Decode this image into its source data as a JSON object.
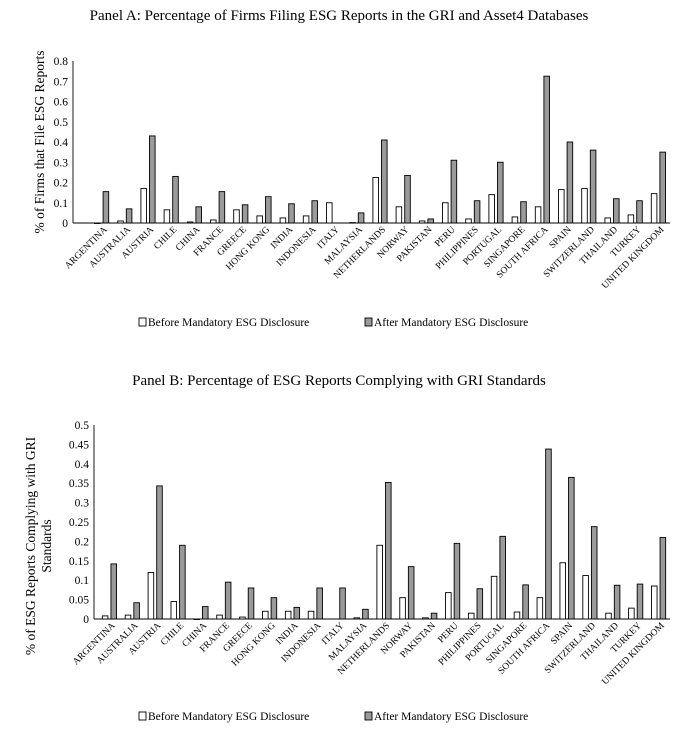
{
  "chart_data": [
    {
      "type": "bar",
      "title": "Panel A: Percentage of Firms Filing ESG Reports in the GRI and Asset4 Databases",
      "ylabel": "% of Firms that File ESG Reports",
      "xlabel": "",
      "ylim": [
        0,
        0.8
      ],
      "yticks": [
        "0",
        "0.1",
        "0.2",
        "0.3",
        "0.4",
        "0.5",
        "0.6",
        "0.7",
        "0.8"
      ],
      "grid": false,
      "legend_position": "bottom",
      "categories": [
        "ARGENTINA",
        "AUSTRALIA",
        "AUSTRIA",
        "CHILE",
        "CHINA",
        "FRANCE",
        "GREECE",
        "HONG KONG",
        "INDIA",
        "INDONESIA",
        "ITALY",
        "MALAYSIA",
        "NETHERLANDS",
        "NORWAY",
        "PAKISTAN",
        "PERU",
        "PHILIPPINES",
        "PORTUGAL",
        "SINGAPORE",
        "SOUTH AFRICA",
        "SPAIN",
        "SWITZERLAND",
        "THAILAND",
        "TURKEY",
        "UNITED KINGDOM"
      ],
      "series": [
        {
          "name": "Before Mandatory ESG Disclosure",
          "values": [
            0.0,
            0.01,
            0.17,
            0.065,
            0.005,
            0.015,
            0.065,
            0.035,
            0.025,
            0.035,
            0.1,
            0.002,
            0.225,
            0.08,
            0.01,
            0.1,
            0.02,
            0.14,
            0.03,
            0.08,
            0.165,
            0.17,
            0.025,
            0.04,
            0.145
          ]
        },
        {
          "name": "After Mandatory ESG Disclosure",
          "values": [
            0.155,
            0.07,
            0.43,
            0.23,
            0.08,
            0.155,
            0.09,
            0.13,
            0.095,
            0.11,
            null,
            0.05,
            0.41,
            0.235,
            0.02,
            0.31,
            0.11,
            0.3,
            0.105,
            0.725,
            0.4,
            0.36,
            0.12,
            0.11,
            0.35
          ]
        }
      ]
    },
    {
      "type": "bar",
      "title": "Panel B: Percentage of ESG Reports Complying with GRI Standards",
      "ylabel": "% of ESG Reports Complying with GRI Standards",
      "ylabel_lines": [
        "% of ESG Reports Complying with GRI",
        "Standards"
      ],
      "xlabel": "",
      "ylim": [
        0,
        0.5
      ],
      "yticks": [
        "0",
        "0.05",
        "0.1",
        "0.15",
        "0.2",
        "0.25",
        "0.3",
        "0.35",
        "0.4",
        "0.45",
        "0.5"
      ],
      "grid": false,
      "legend_position": "bottom",
      "categories": [
        "ARGENTINA",
        "AUSTRALIA",
        "AUSTRIA",
        "CHILE",
        "CHINA",
        "FRANCE",
        "GREECE",
        "HONG KONG",
        "INDIA",
        "INDONESIA",
        "ITALY",
        "MALAYSIA",
        "NETHERLANDS",
        "NORWAY",
        "PAKISTAN",
        "PERU",
        "PHILIPPINES",
        "PORTUGAL",
        "SINGAPORE",
        "SOUTH AFRICA",
        "SPAIN",
        "SWITZERLAND",
        "THAILAND",
        "TURKEY",
        "UNITED KINGDOM"
      ],
      "series": [
        {
          "name": "Before Mandatory ESG Disclosure",
          "values": [
            0.008,
            0.01,
            0.12,
            0.045,
            0.0,
            0.01,
            0.005,
            0.02,
            0.02,
            0.02,
            null,
            0.003,
            0.19,
            0.055,
            0.003,
            0.068,
            0.015,
            0.11,
            0.018,
            0.055,
            0.145,
            0.112,
            0.015,
            0.028,
            0.085
          ]
        },
        {
          "name": "After Mandatory ESG Disclosure",
          "values": [
            0.142,
            0.042,
            0.343,
            0.19,
            0.032,
            0.095,
            0.08,
            0.055,
            0.03,
            0.08,
            0.08,
            0.025,
            0.352,
            0.135,
            0.015,
            0.195,
            0.078,
            0.213,
            0.088,
            0.438,
            0.365,
            0.238,
            0.087,
            0.09,
            0.21
          ]
        }
      ]
    }
  ],
  "legend": {
    "before": "Before Mandatory ESG Disclosure",
    "after": "After Mandatory ESG Disclosure"
  },
  "colors": {
    "before_fill": "#ffffff",
    "after_fill": "#9a9a9a",
    "outline": "#000000"
  }
}
